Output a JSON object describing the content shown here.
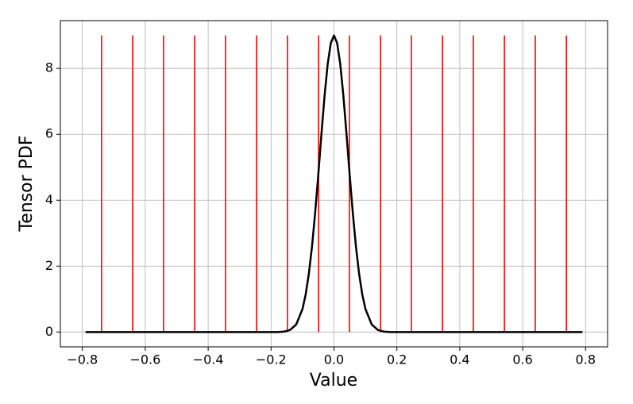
{
  "chart_data": {
    "type": "line",
    "x_label": "Value",
    "y_label": "Tensor PDF",
    "xlim": [
      -0.87,
      0.87
    ],
    "ylim": [
      -0.45,
      9.45
    ],
    "xticks": [
      {
        "value": -0.8,
        "label": "−0.8"
      },
      {
        "value": -0.6,
        "label": "−0.6"
      },
      {
        "value": -0.4,
        "label": "−0.4"
      },
      {
        "value": -0.2,
        "label": "−0.2"
      },
      {
        "value": 0,
        "label": "0.0"
      },
      0.2,
      0.4,
      0.6,
      0.8
    ],
    "yticks": [
      0,
      2,
      4,
      6,
      8
    ],
    "grid": true,
    "series": [
      {
        "color": "#000000",
        "x": [
          -0.79,
          -0.6,
          -0.4,
          -0.3,
          -0.25,
          -0.2,
          -0.18,
          -0.16,
          -0.14,
          -0.12,
          -0.1,
          -0.09,
          -0.08,
          -0.07,
          -0.06,
          -0.05,
          -0.04,
          -0.03,
          -0.02,
          -0.01,
          0,
          0.01,
          0.02,
          0.03,
          0.04,
          0.05,
          0.06,
          0.07,
          0.08,
          0.09,
          0.1,
          0.12,
          0.14,
          0.16,
          0.18,
          0.2,
          0.25,
          0.3,
          0.4,
          0.6,
          0.79
        ],
        "values": [
          0,
          0,
          0,
          0,
          0,
          0,
          0,
          0.01,
          0.06,
          0.23,
          0.7,
          1.14,
          1.76,
          2.58,
          3.6,
          4.76,
          5.99,
          7.16,
          8.13,
          8.77,
          9,
          8.77,
          8.13,
          7.16,
          5.99,
          4.76,
          3.6,
          2.58,
          1.76,
          1.14,
          0.7,
          0.23,
          0.06,
          0.01,
          0,
          0,
          0,
          0,
          0,
          0,
          0
        ]
      }
    ],
    "vlines": {
      "color": "#ff0000",
      "x": [
        -0.739,
        -0.64,
        -0.542,
        -0.443,
        -0.345,
        -0.246,
        -0.148,
        -0.049,
        0.049,
        0.148,
        0.246,
        0.345,
        0.443,
        0.542,
        0.64,
        0.739
      ],
      "ymin": 0,
      "ymax": 9
    }
  }
}
